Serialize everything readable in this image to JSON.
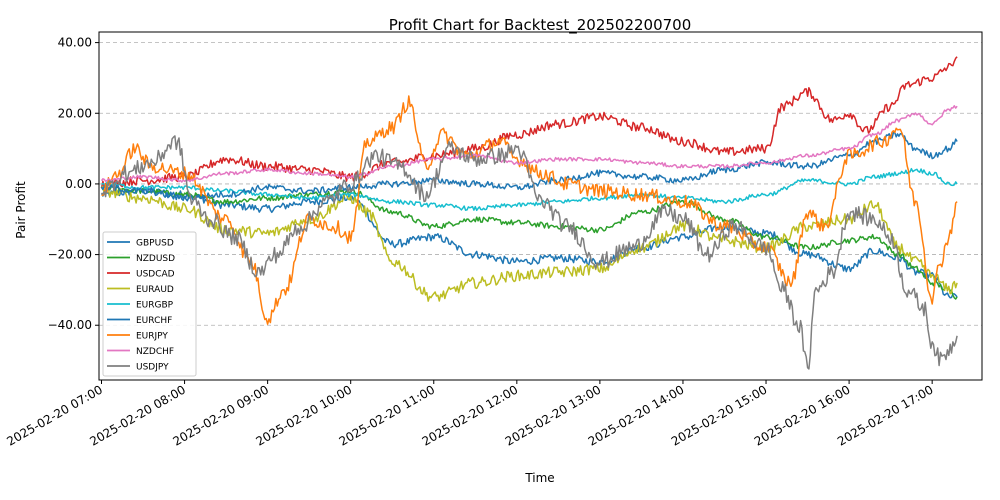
{
  "chart_data": {
    "type": "line",
    "title": "Profit Chart for Backtest_202502200700",
    "xlabel": "Time",
    "ylabel": "Pair Profit",
    "grid": "y-dashed",
    "legend_position": "lower-left",
    "xlim": [
      -0.03,
      10.6
    ],
    "ylim": [
      -55.5,
      43
    ],
    "x_ticks": [
      {
        "value": 0,
        "label": "2025-02-20 07:00"
      },
      {
        "value": 1,
        "label": "2025-02-20 08:00"
      },
      {
        "value": 2,
        "label": "2025-02-20 09:00"
      },
      {
        "value": 3,
        "label": "2025-02-20 10:00"
      },
      {
        "value": 4,
        "label": "2025-02-20 11:00"
      },
      {
        "value": 5,
        "label": "2025-02-20 12:00"
      },
      {
        "value": 6,
        "label": "2025-02-20 13:00"
      },
      {
        "value": 7,
        "label": "2025-02-20 14:00"
      },
      {
        "value": 8,
        "label": "2025-02-20 15:00"
      },
      {
        "value": 9,
        "label": "2025-02-20 16:00"
      },
      {
        "value": 10,
        "label": "2025-02-20 17:00"
      }
    ],
    "y_ticks": [
      {
        "value": 40,
        "label": "40.00"
      },
      {
        "value": 20,
        "label": "20.00"
      },
      {
        "value": 0,
        "label": "0.00"
      },
      {
        "value": -20,
        "label": "−20.00"
      },
      {
        "value": -40,
        "label": "−40.00"
      }
    ],
    "series": [
      {
        "name": "GBPUSD",
        "color": "#1f77b4",
        "noise": 1.1,
        "x": [
          0,
          0.5,
          1,
          1.5,
          2,
          2.5,
          3,
          3.5,
          4,
          4.5,
          5,
          5.5,
          6,
          6.5,
          7,
          7.5,
          8,
          8.5,
          9,
          9.3,
          9.6,
          9.8,
          10,
          10.2,
          10.3
        ],
        "y": [
          -3,
          -2,
          -3,
          -6,
          -7,
          -5,
          -4,
          -17,
          -15,
          -20,
          -22,
          -21,
          -22,
          -18,
          -15,
          -12,
          -14,
          -20,
          -24,
          -19,
          -21,
          -25,
          -26,
          -32,
          -32
        ]
      },
      {
        "name": "NZDUSD",
        "color": "#2ca02c",
        "noise": 0.8,
        "x": [
          0,
          0.5,
          1,
          1.5,
          2,
          2.5,
          3,
          3.5,
          4,
          4.5,
          5,
          5.5,
          6,
          6.5,
          7,
          7.5,
          8,
          8.5,
          9,
          9.3,
          9.6,
          9.8,
          10,
          10.2,
          10.3
        ],
        "y": [
          -1,
          -2,
          -3,
          -5,
          -4,
          -3,
          -2,
          -8,
          -12,
          -10,
          -11,
          -12,
          -13,
          -8,
          -5,
          -10,
          -15,
          -18,
          -16,
          -15,
          -20,
          -24,
          -28,
          -30,
          -32
        ]
      },
      {
        "name": "USDCAD",
        "color": "#d62728",
        "noise": 1.3,
        "x": [
          0,
          0.5,
          1,
          1.5,
          2,
          2.5,
          3,
          3.5,
          4,
          4.5,
          5,
          5.5,
          6,
          6.5,
          7,
          7.5,
          8,
          8.2,
          8.5,
          8.8,
          9,
          9.2,
          9.5,
          9.7,
          10,
          10.2,
          10.3
        ],
        "y": [
          0,
          1,
          2,
          7,
          5,
          4,
          2,
          6,
          8,
          10,
          14,
          17,
          19,
          16,
          12,
          9,
          10,
          22,
          26,
          18,
          20,
          15,
          22,
          28,
          30,
          33,
          36
        ]
      },
      {
        "name": "EURAUD",
        "color": "#bcbd22",
        "noise": 1.6,
        "x": [
          0,
          0.5,
          1,
          1.5,
          2,
          2.5,
          3,
          3.2,
          3.5,
          4,
          4.5,
          5,
          5.5,
          6,
          6.5,
          7,
          7.5,
          8,
          8.5,
          9,
          9.3,
          9.6,
          9.8,
          10,
          10.2,
          10.3
        ],
        "y": [
          -2,
          -4,
          -7,
          -13,
          -14,
          -10,
          -4,
          -8,
          -22,
          -32,
          -28,
          -26,
          -25,
          -24,
          -18,
          -12,
          -16,
          -18,
          -12,
          -10,
          -6,
          -18,
          -22,
          -26,
          -30,
          -28
        ]
      },
      {
        "name": "EURGBP",
        "color": "#17becf",
        "noise": 0.6,
        "x": [
          0,
          0.5,
          1,
          1.5,
          2,
          2.5,
          3,
          3.5,
          4,
          4.5,
          5,
          5.5,
          6,
          6.5,
          7,
          7.5,
          8,
          8.5,
          9,
          9.3,
          9.6,
          9.8,
          10,
          10.2,
          10.3
        ],
        "y": [
          0,
          -1,
          -1,
          -2,
          -3,
          -4,
          -3,
          -5,
          -6,
          -7,
          -6,
          -5,
          -4,
          -3,
          -4,
          -5,
          -3,
          1,
          0,
          2,
          3,
          4,
          3,
          0,
          0
        ]
      },
      {
        "name": "EURCHF",
        "color": "#1f77b4",
        "noise": 0.9,
        "x": [
          0,
          0.5,
          1,
          1.5,
          2,
          2.5,
          3,
          3.5,
          4,
          4.5,
          5,
          5.5,
          6,
          6.5,
          7,
          7.5,
          8,
          8.5,
          9,
          9.3,
          9.6,
          9.8,
          10,
          10.2,
          10.3
        ],
        "y": [
          -1,
          -2,
          -4,
          -3,
          -1,
          -2,
          -1,
          0,
          1,
          0,
          -1,
          1,
          3,
          2,
          1,
          4,
          6,
          5,
          8,
          12,
          14,
          10,
          8,
          10,
          12
        ]
      },
      {
        "name": "EURJPY",
        "color": "#ff7f0e",
        "noise": 2.0,
        "x": [
          0,
          0.2,
          0.4,
          0.6,
          1,
          1.5,
          1.8,
          2,
          2.2,
          2.5,
          2.8,
          3,
          3.2,
          3.5,
          3.7,
          3.9,
          4.1,
          4.4,
          4.8,
          5,
          5.3,
          5.6,
          6,
          6.5,
          7,
          7.5,
          8,
          8.3,
          8.5,
          8.7,
          9,
          9.4,
          9.6,
          9.8,
          10,
          10.1,
          10.2,
          10.3
        ],
        "y": [
          -2,
          3,
          10,
          5,
          3,
          -10,
          -22,
          -38,
          -30,
          -10,
          -12,
          -15,
          12,
          16,
          23,
          5,
          14,
          8,
          12,
          7,
          3,
          0,
          -2,
          -3,
          -5,
          -12,
          -18,
          -28,
          -8,
          -12,
          8,
          12,
          16,
          -5,
          -32,
          -22,
          -15,
          -5
        ]
      },
      {
        "name": "NZDCHF",
        "color": "#e377c2",
        "noise": 0.5,
        "x": [
          0,
          0.5,
          1,
          1.5,
          2,
          2.5,
          3,
          3.5,
          4,
          4.5,
          5,
          5.5,
          6,
          6.5,
          7,
          7.5,
          8,
          8.5,
          9,
          9.3,
          9.6,
          9.8,
          10,
          10.2,
          10.3
        ],
        "y": [
          1,
          2,
          1,
          3,
          4,
          3,
          2,
          5,
          7,
          8,
          6,
          7,
          7,
          6,
          5,
          5,
          6,
          8,
          10,
          14,
          18,
          20,
          17,
          21,
          22
        ]
      },
      {
        "name": "USDJPY",
        "color": "#7f7f7f",
        "noise": 2.4,
        "x": [
          0,
          0.3,
          0.6,
          0.9,
          1.1,
          1.3,
          1.6,
          1.9,
          2.1,
          2.4,
          2.7,
          3,
          3.3,
          3.6,
          3.9,
          4.2,
          4.5,
          4.8,
          5,
          5.3,
          5.6,
          6,
          6.4,
          6.8,
          7,
          7.3,
          7.6,
          8,
          8.2,
          8.4,
          8.5,
          8.6,
          8.8,
          9,
          9.3,
          9.5,
          9.7,
          9.9,
          10,
          10.1,
          10.2,
          10.3
        ],
        "y": [
          -2,
          3,
          6,
          12,
          -5,
          -10,
          -15,
          -25,
          -20,
          -12,
          -5,
          0,
          8,
          5,
          -3,
          10,
          7,
          8,
          10,
          -5,
          -12,
          -22,
          -18,
          -8,
          -10,
          -20,
          -12,
          -18,
          -30,
          -40,
          -52,
          -30,
          -25,
          -8,
          -10,
          -15,
          -30,
          -35,
          -45,
          -50,
          -47,
          -43
        ]
      }
    ]
  }
}
